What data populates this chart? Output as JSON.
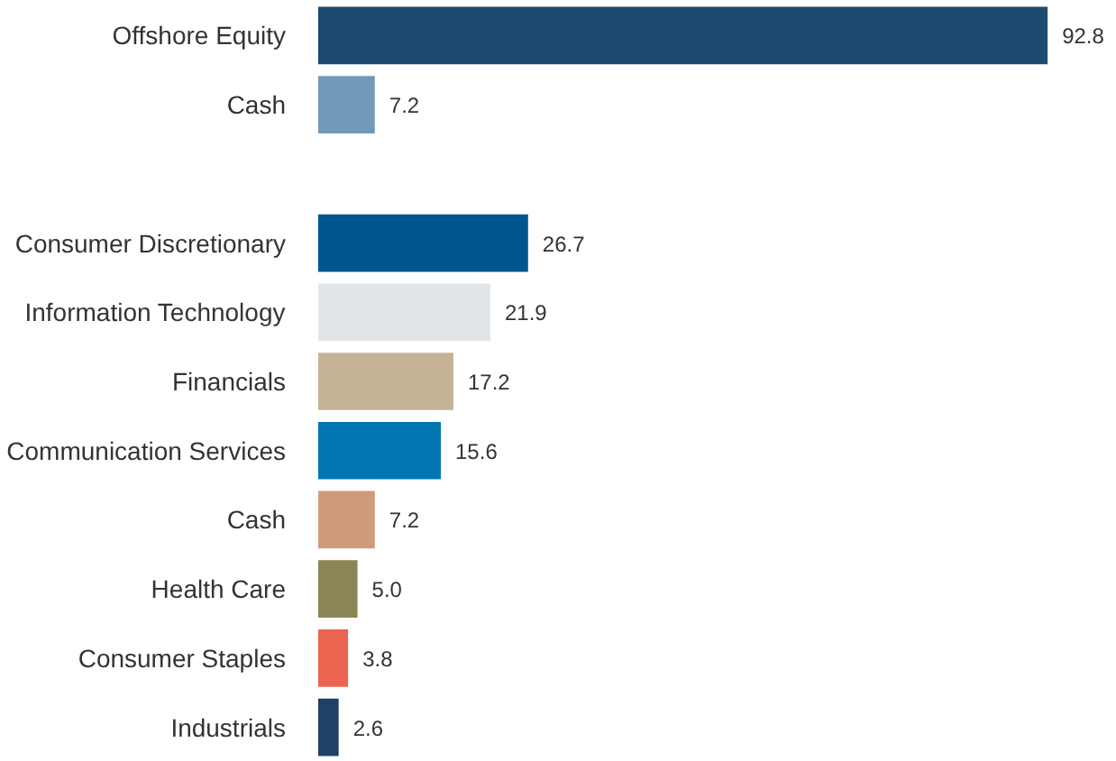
{
  "chart_data": {
    "type": "bar",
    "orientation": "horizontal",
    "grid": false,
    "value_labels": [
      "92.8",
      "7.2",
      null,
      "26.7",
      "21.9",
      "17.2",
      "15.6",
      "7.2",
      "5.0",
      "3.8",
      "2.6"
    ],
    "categories": [
      "Offshore Equity",
      "Cash",
      null,
      "Consumer Discretionary",
      "Information Technology",
      "Financials",
      "Communication Services",
      "Cash",
      "Health Care",
      "Consumer Staples",
      "Industrials"
    ],
    "values": [
      92.8,
      7.2,
      null,
      26.7,
      21.9,
      17.2,
      15.6,
      7.2,
      5.0,
      3.8,
      2.6
    ],
    "colors": [
      "#1f4a70",
      "#7399b8",
      "#ffffff",
      "#00558f",
      "#e1e5e8",
      "#c6b395",
      "#0075b0",
      "#d09b7a",
      "#8b8656",
      "#ec6550",
      "#1e4266"
    ]
  }
}
